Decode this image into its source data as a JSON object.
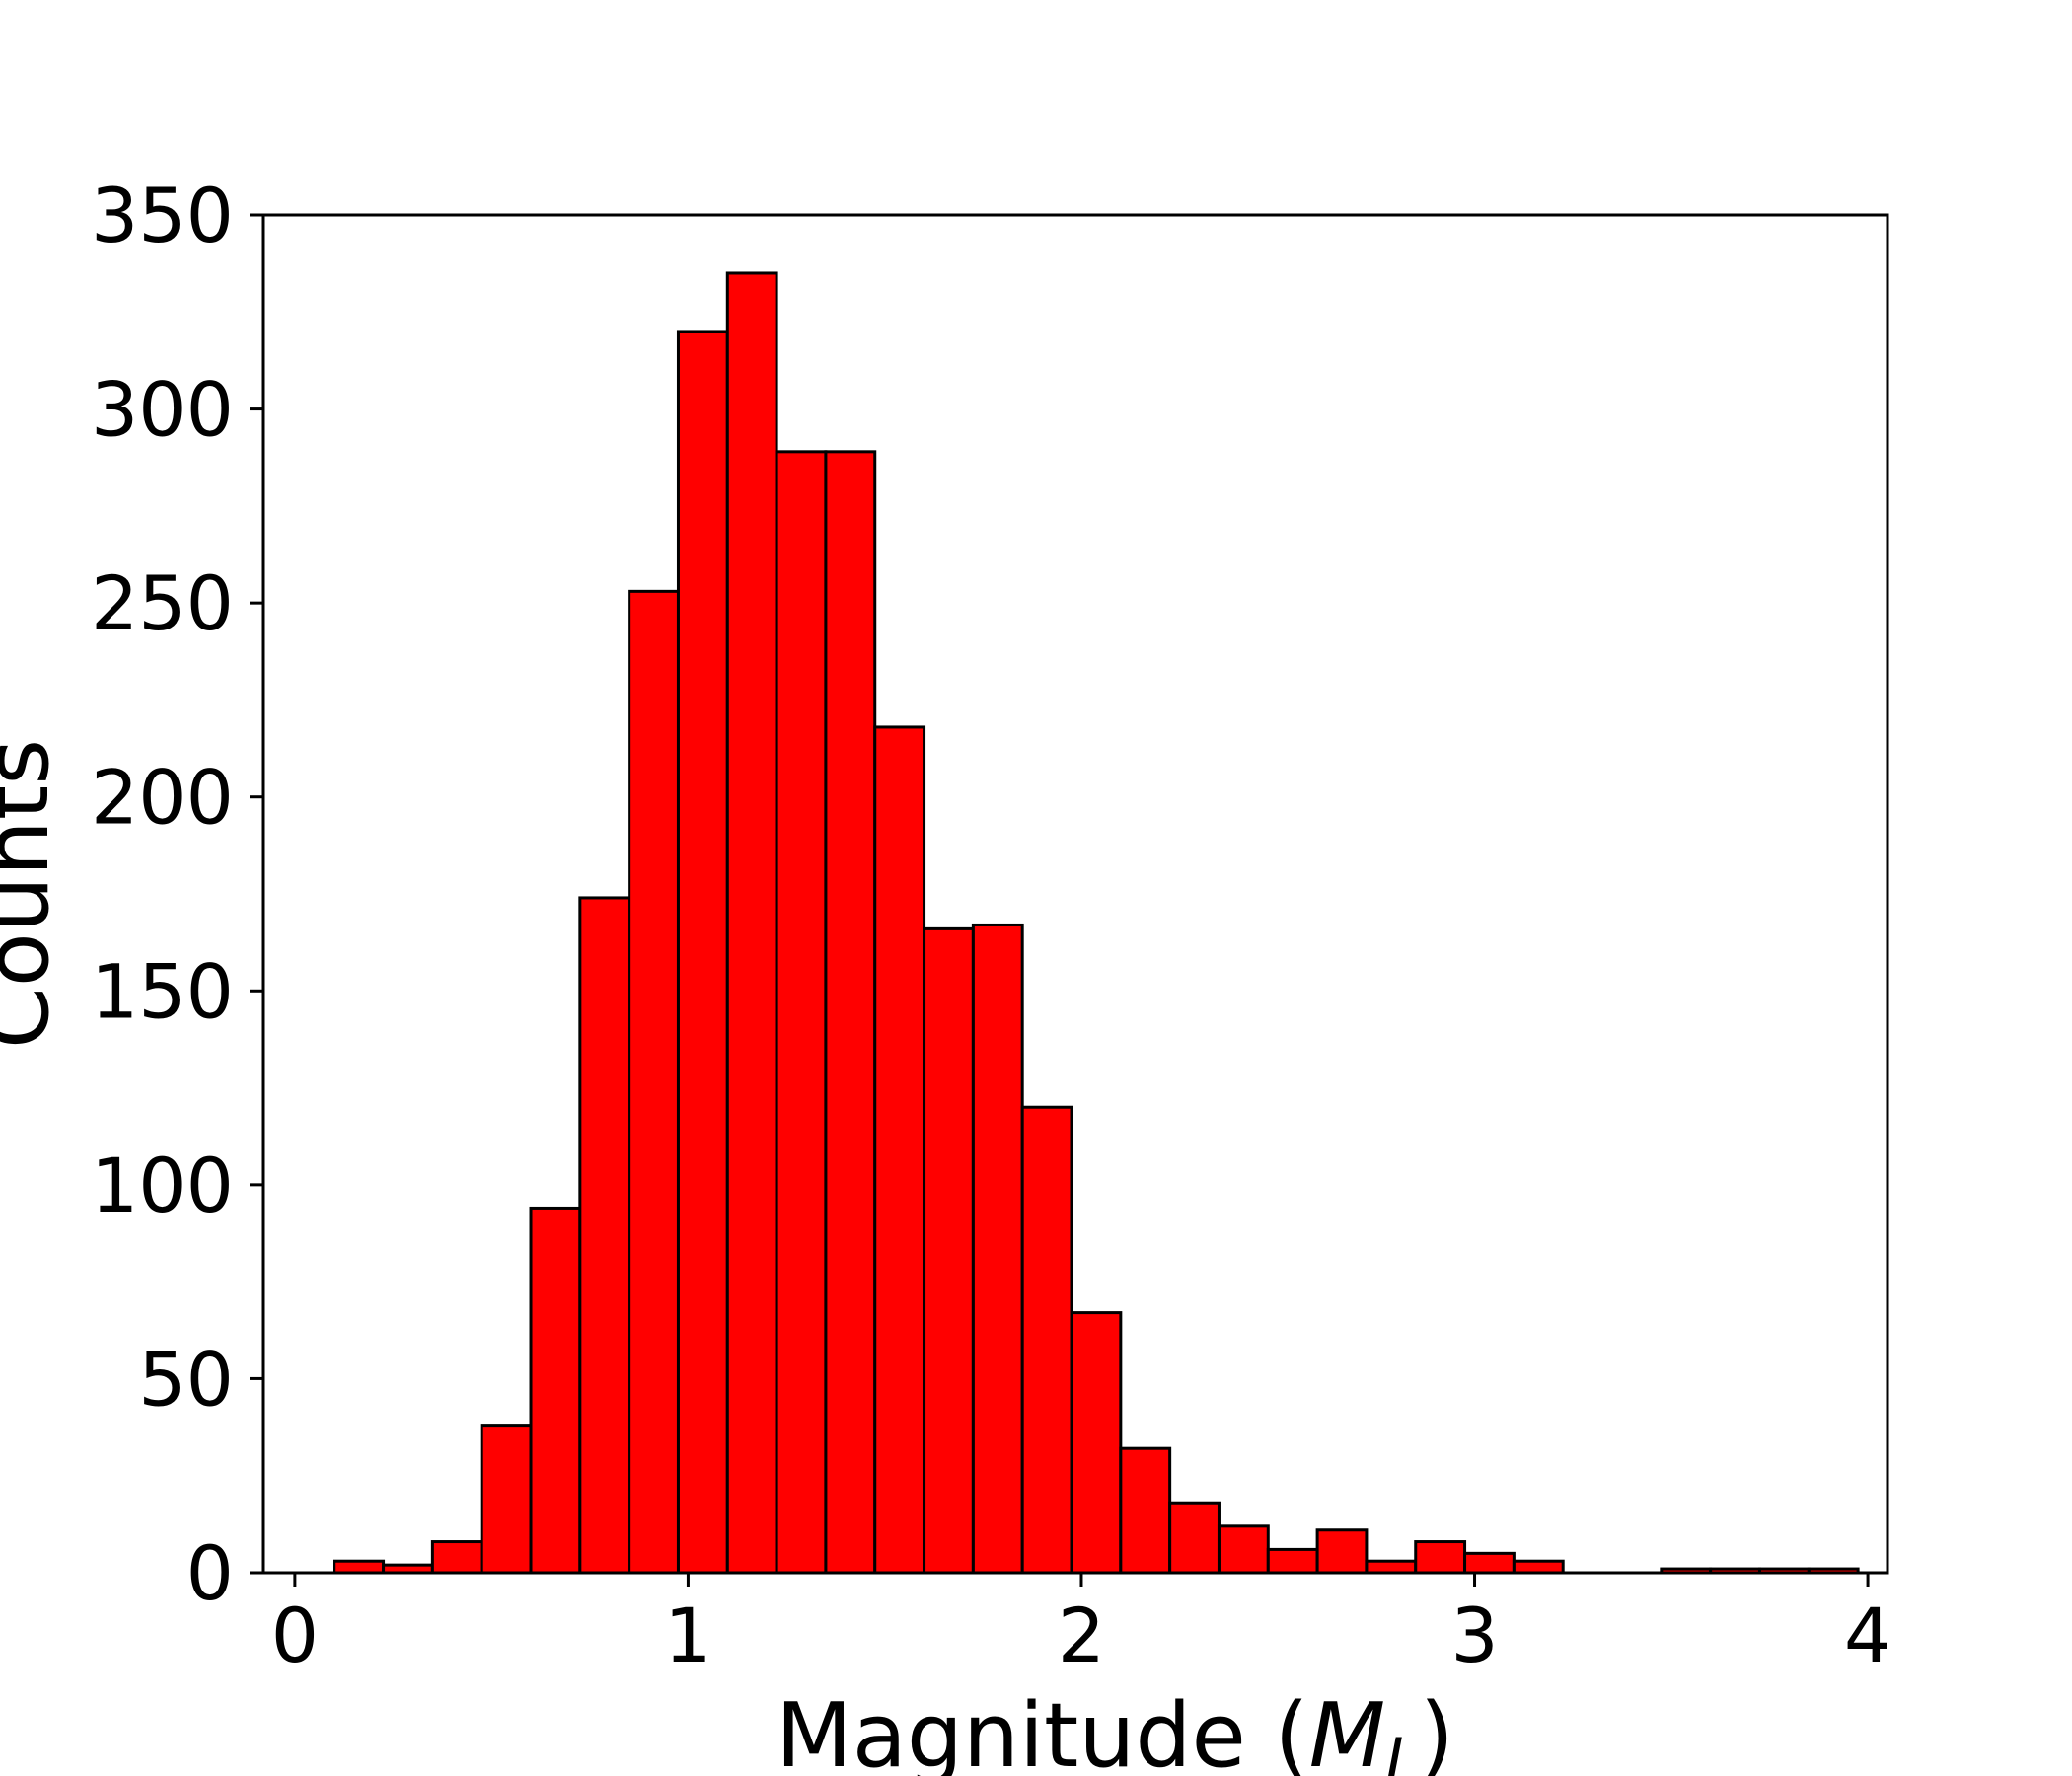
{
  "chart_data": {
    "type": "bar",
    "xlabel": "Magnitude (",
    "xlabel_symbol": "M",
    "xlabel_subscript": "L",
    "xlabel_close": ")",
    "ylabel": "Counts",
    "xlim": [
      -0.08,
      4.05
    ],
    "ylim": [
      0,
      350
    ],
    "xticks": [
      0,
      1,
      2,
      3,
      4
    ],
    "yticks": [
      0,
      50,
      100,
      150,
      200,
      250,
      300,
      350
    ],
    "xtick_labels": [
      "0",
      "1",
      "2",
      "3",
      "4"
    ],
    "ytick_labels": [
      "0",
      "50",
      "100",
      "150",
      "200",
      "250",
      "300",
      "350"
    ],
    "bin_start": 0.1,
    "bin_width": 0.125,
    "counts": [
      3,
      2,
      8,
      38,
      94,
      174,
      253,
      320,
      335,
      289,
      289,
      218,
      166,
      167,
      120,
      67,
      32,
      18,
      12,
      6,
      11,
      3,
      8,
      5,
      3,
      0,
      0,
      1,
      1,
      1,
      1
    ],
    "grid": false,
    "bar_color": "#ff0000",
    "edge_color": "#000000"
  }
}
